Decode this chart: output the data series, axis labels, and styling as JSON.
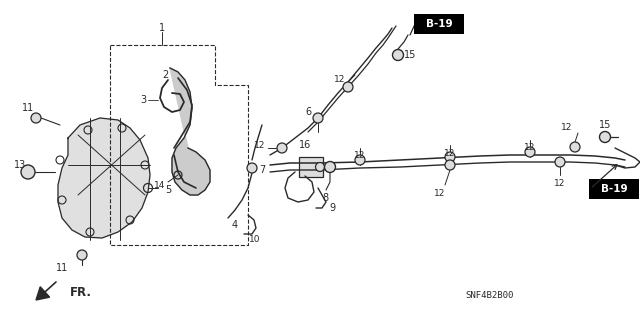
{
  "bg_color": "#ffffff",
  "line_color": "#2a2a2a",
  "diagram_code": "SNF4B2B00",
  "fig_width": 6.4,
  "fig_height": 3.19,
  "dpi": 100,
  "xlim": [
    0,
    640
  ],
  "ylim": [
    0,
    319
  ]
}
